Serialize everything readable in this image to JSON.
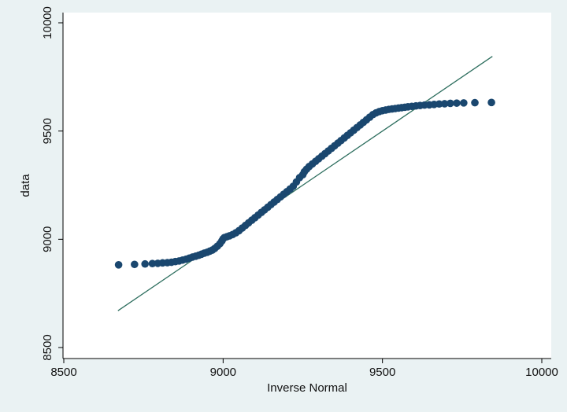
{
  "chart_data": {
    "type": "scatter",
    "title": "",
    "xlabel": "Inverse Normal",
    "ylabel": "data",
    "xlim": [
      8500,
      10000
    ],
    "ylim": [
      8500,
      10000
    ],
    "x_ticks": [
      8500,
      9000,
      9500,
      10000
    ],
    "y_ticks": [
      8500,
      9000,
      9500,
      10000
    ],
    "grid": false,
    "legend": "none",
    "colors": {
      "points": "#1a476f",
      "reference_line": "#2d6e5e",
      "plot_bg": "#ffffff",
      "page_bg": "#eaf2f3"
    },
    "reference_line": {
      "x": [
        8670,
        9845
      ],
      "y": [
        8670,
        9845
      ]
    },
    "series": [
      {
        "x": [
          8672,
          8722,
          8755,
          8778,
          8795,
          8810,
          8825,
          8838,
          8850,
          8862,
          8873,
          8884,
          8894,
          8904,
          8914,
          8923,
          8932,
          8941,
          8950,
          8958,
          8966,
          8974,
          8982,
          8990,
          8996,
          9000,
          9004,
          9012,
          9020,
          9030,
          9040,
          9050,
          9060,
          9070,
          9080,
          9090,
          9100,
          9110,
          9120,
          9130,
          9140,
          9150,
          9160,
          9170,
          9180,
          9190,
          9200,
          9210,
          9220,
          9230,
          9240,
          9250,
          9255,
          9262,
          9270,
          9280,
          9290,
          9300,
          9310,
          9320,
          9330,
          9340,
          9350,
          9360,
          9370,
          9380,
          9390,
          9400,
          9410,
          9420,
          9430,
          9440,
          9450,
          9460,
          9470,
          9480,
          9490,
          9500,
          9510,
          9520,
          9530,
          9540,
          9550,
          9560,
          9570,
          9580,
          9592,
          9605,
          9618,
          9632,
          9647,
          9662,
          9678,
          9695,
          9713,
          9733,
          9755,
          9790,
          9842
        ],
        "y": [
          8882,
          8884,
          8886,
          8888,
          8889,
          8891,
          8892,
          8894,
          8897,
          8900,
          8904,
          8908,
          8913,
          8918,
          8922,
          8926,
          8931,
          8936,
          8940,
          8945,
          8950,
          8958,
          8968,
          8980,
          8992,
          9002,
          9008,
          9012,
          9016,
          9022,
          9030,
          9040,
          9052,
          9064,
          9076,
          9088,
          9100,
          9112,
          9124,
          9136,
          9148,
          9160,
          9172,
          9184,
          9196,
          9208,
          9220,
          9232,
          9245,
          9265,
          9285,
          9298,
          9312,
          9324,
          9336,
          9348,
          9360,
          9372,
          9384,
          9396,
          9408,
          9420,
          9432,
          9444,
          9456,
          9468,
          9480,
          9492,
          9504,
          9516,
          9528,
          9540,
          9552,
          9564,
          9576,
          9584,
          9590,
          9594,
          9597,
          9600,
          9602,
          9604,
          9606,
          9608,
          9610,
          9612,
          9614,
          9616,
          9618,
          9620,
          9621,
          9623,
          9625,
          9626,
          9628,
          9629,
          9630,
          9631,
          9632
        ]
      }
    ]
  }
}
